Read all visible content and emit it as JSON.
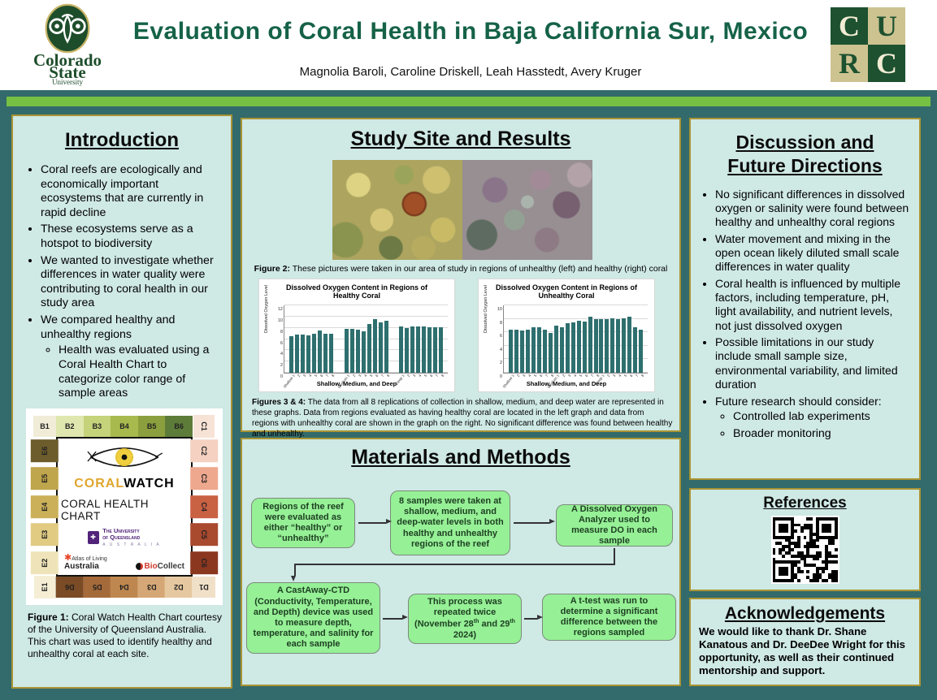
{
  "header": {
    "title": "Evaluation of Coral Health in Baja California Sur, Mexico",
    "authors": "Magnolia Baroli, Caroline Driskell, Leah Hasstedt, Avery Kruger",
    "csu": {
      "word1": "Colorado",
      "word2": "State",
      "word3": "University"
    },
    "curc": {
      "l1": "C",
      "l2": "U",
      "l3": "R",
      "l4": "C"
    }
  },
  "colors": {
    "poster_background": "#336a6b",
    "divider_green": "#76c043",
    "panel_mint": "#cfe9e5",
    "panel_border_gold": "#aa9434",
    "title_green": "#156247",
    "flow_box_green": "#96f096",
    "chart_bar_teal": "#2e6f6f",
    "csu_green": "#1E4D2B",
    "curc_tan": "#cdc391"
  },
  "intro": {
    "heading": "Introduction",
    "bullets": [
      "Coral reefs are ecologically and economically important ecosystems that are currently in rapid decline",
      "These ecosystems serve as a hotspot to biodiversity",
      "We wanted to investigate whether differences in water quality were contributing to coral health in our study area",
      "We compared healthy and unhealthy regions"
    ],
    "sub_bullet": "Health was evaluated using a Coral Health Chart to categorize color range of sample areas"
  },
  "figure1": {
    "caption_label": "Figure 1:",
    "caption_text": " Coral Watch Health Chart courtesy of the University of Queensland Australia. This chart was used to identify healthy and unhealthy coral at each site.",
    "coralwatch": {
      "brand_coral": "CORAL",
      "brand_watch": "WATCH",
      "subtitle": "CORAL HEALTH CHART",
      "uq_line1": "The University",
      "uq_line2": "of Queensland",
      "uq_line3": "A U S T R A L I A",
      "atlas_line1": "Atlas of Living",
      "atlas_line2": "Australia",
      "bio_red": "Bio",
      "bio_dark": "Collect"
    },
    "swatches": {
      "top": [
        [
          "B1",
          "#f1ecd8"
        ],
        [
          "B2",
          "#dfe7af"
        ],
        [
          "B3",
          "#c5d37a"
        ],
        [
          "B4",
          "#a8b94e"
        ],
        [
          "B5",
          "#8c9f3e"
        ],
        [
          "B6",
          "#5e7c39"
        ]
      ],
      "right": [
        [
          "C1",
          "#f7e3d6"
        ],
        [
          "C2",
          "#f4d1c1"
        ],
        [
          "C3",
          "#eea88e"
        ],
        [
          "C4",
          "#c96143"
        ],
        [
          "C5",
          "#a9492e"
        ],
        [
          "C6",
          "#8b3720"
        ]
      ],
      "left": [
        [
          "E6",
          "#6d5d2c"
        ],
        [
          "E5",
          "#bfa54b"
        ],
        [
          "E4",
          "#cbb059"
        ],
        [
          "E3",
          "#e1cb83"
        ],
        [
          "E2",
          "#efe4b9"
        ],
        [
          "E1",
          "#f5eed5"
        ]
      ],
      "bottom": [
        [
          "D6",
          "#7a4b25"
        ],
        [
          "D5",
          "#a56a3a"
        ],
        [
          "D4",
          "#be874f"
        ],
        [
          "D3",
          "#d6a776"
        ],
        [
          "D2",
          "#e6c8a0"
        ],
        [
          "D1",
          "#f1e0c8"
        ]
      ]
    }
  },
  "study": {
    "heading": "Study Site and Results",
    "fig2_label": "Figure 2:",
    "fig2_text": " These pictures were taken in our area of study in regions of unhealthy (left) and healthy (right) coral",
    "fig34_label": "Figures 3 & 4:",
    "fig34_text": " The data from all 8 replications of collection in shallow, medium, and deep water are represented in these graphs. Data from regions evaluated as having healthy coral are located in the left graph and data from regions with unhealthy coral are shown in the graph on the right. No significant difference was found between healthy and unhealthy."
  },
  "chart_data": [
    {
      "type": "bar",
      "title": "Dissolved Oxygen Content in Regions of Healthy Coral",
      "title_lines": [
        "Dissolved Oxygen Content in Regions of",
        "Healthy Coral"
      ],
      "xlabel": "Shallow, Medium, and Deep",
      "ylabel": "Dissolved Oxygen Level",
      "ylim": [
        0,
        12
      ],
      "yticks": [
        0,
        2,
        4,
        6,
        8,
        10,
        12
      ],
      "grid": true,
      "legend": "none",
      "categories": [
        "1",
        "2",
        "3",
        "4",
        "5",
        "6",
        "7",
        "8"
      ],
      "series": [
        {
          "name": "Shallow",
          "values": [
            6.5,
            6.8,
            6.8,
            6.7,
            6.9,
            7.5,
            6.9,
            7.0
          ]
        },
        {
          "name": "Medium",
          "values": [
            7.8,
            7.8,
            7.7,
            7.4,
            8.7,
            9.5,
            9.0,
            9.2
          ]
        },
        {
          "name": "Deep",
          "values": [
            8.2,
            7.9,
            8.3,
            8.3,
            8.2,
            8.1,
            8.1,
            8.1
          ]
        }
      ],
      "bar_color": "#2e6f6f"
    },
    {
      "type": "bar",
      "title": "Dissolved Oxygen Content in Regions of Unhealthy Coral",
      "title_lines": [
        "Dissolved Oxygen Content in Regions of",
        "Unhealthy Coral"
      ],
      "xlabel": "Shallow, Medium, and Deep",
      "ylabel": "Dissolved Oxygen Level",
      "ylim": [
        0,
        10
      ],
      "yticks": [
        0,
        2,
        4,
        6,
        8,
        10
      ],
      "grid": true,
      "legend": "none",
      "categories": [
        "1",
        "2",
        "3",
        "4",
        "5",
        "6",
        "7",
        "8"
      ],
      "series": [
        {
          "name": "Shallow",
          "values": [
            6.4,
            6.4,
            6.3,
            6.4,
            6.8,
            6.8,
            6.4,
            5.9
          ]
        },
        {
          "name": "Medium",
          "values": [
            7.0,
            6.8,
            7.3,
            7.5,
            7.7,
            7.6,
            8.3,
            8.0
          ]
        },
        {
          "name": "Deep",
          "values": [
            7.9,
            8.0,
            8.1,
            8.0,
            8.1,
            8.3,
            6.8,
            6.4
          ]
        }
      ],
      "bar_color": "#2e6f6f"
    }
  ],
  "methods": {
    "heading": "Materials and Methods",
    "box1": "Regions of the reef were evaluated as either “healthy” or “unhealthy”",
    "box2": "8 samples were taken at shallow, medium, and deep-water levels in both healthy and unhealthy regions of the reef",
    "box3": "A Dissolved Oxygen Analyzer used to measure DO in each sample",
    "box4": "A CastAway-CTD (Conductivity, Temperature, and Depth) device was used to measure depth, temperature, and salinity for each sample",
    "box5": {
      "p0": "This process was repeated twice (November 28",
      "s0": "th",
      "p1": " and 29",
      "s1": "th",
      "p2": " 2024)"
    },
    "box6": "A t-test was run to determine a significant difference between the regions sampled"
  },
  "discussion": {
    "heading_line1": "Discussion and",
    "heading_line2": "Future Directions",
    "bullets": [
      "No significant differences in dissolved oxygen or salinity were found between healthy and unhealthy coral regions",
      "Water movement and mixing in the open ocean likely diluted small scale differences in water quality",
      "Coral health is influenced by multiple factors, including temperature, pH, light availability, and nutrient levels, not just dissolved oxygen",
      "Possible limitations in our study include small sample size, environmental variability, and limited duration",
      "Future research should consider:"
    ],
    "sub_bullets": [
      "Controlled lab experiments",
      "Broader monitoring"
    ]
  },
  "references": {
    "heading": "References"
  },
  "acknowledgements": {
    "heading": "Acknowledgements",
    "body": "We would like to thank Dr. Shane Kanatous and Dr. DeeDee Wright for this opportunity, as well as their continued mentorship and support."
  }
}
